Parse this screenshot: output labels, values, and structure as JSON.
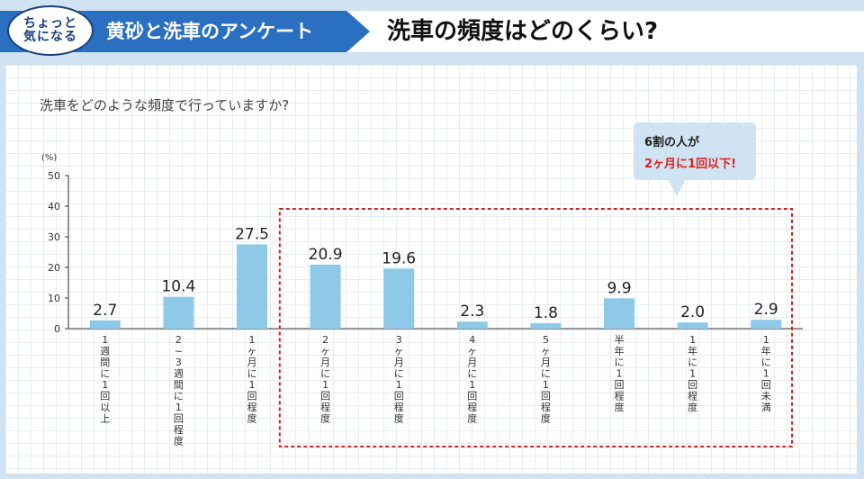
{
  "header": {
    "badge_line1": "ちょっと",
    "badge_line2": "気になる",
    "section_label": "黄砂と洗車のアンケート",
    "main_title": "洗車の頻度はどのくらい?"
  },
  "callout": {
    "line1": "6割の人が",
    "line2": "2ヶ月に1回以下!"
  },
  "colors": {
    "bar": "#8ec9e8",
    "highlight_border": "#d42020",
    "header_blue": "#2b6fc0"
  },
  "chart_data": {
    "type": "bar",
    "title": "洗車をどのような頻度で行っていますか?",
    "unit": "(%)",
    "ylim": [
      0,
      50
    ],
    "yticks": [
      "0",
      "10",
      "20",
      "30",
      "40",
      "50"
    ],
    "categories": [
      "1週間に1回以上",
      "2~3週間に1回程度",
      "1ヶ月に1回程度",
      "2ヶ月に1回程度",
      "3ヶ月に1回程度",
      "4ヶ月に1回程度",
      "5ヶ月に1回程度",
      "半年に1回程度",
      "1年に1回程度",
      "1年に1回未満"
    ],
    "values": [
      2.7,
      10.4,
      27.5,
      20.9,
      19.6,
      2.3,
      1.8,
      9.9,
      2.0,
      2.9
    ],
    "value_labels": [
      "2.7",
      "10.4",
      "27.5",
      "20.9",
      "19.6",
      "2.3",
      "1.8",
      "9.9",
      "2.0",
      "2.9"
    ],
    "highlight_range": [
      3,
      9
    ]
  }
}
